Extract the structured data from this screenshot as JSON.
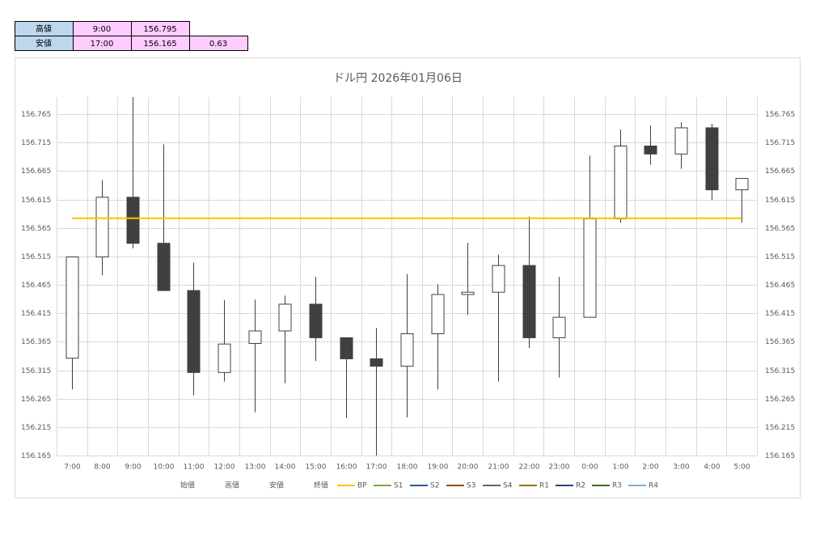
{
  "table": {
    "rows": [
      [
        "高値",
        "9:00",
        "156.795"
      ],
      [
        "安値",
        "17:00",
        "156.165",
        "0.63"
      ]
    ]
  },
  "chart_data": {
    "type": "candlestick",
    "title": "ドル円 2026年01月06日",
    "categories": [
      "7:00",
      "8:00",
      "9:00",
      "10:00",
      "11:00",
      "12:00",
      "13:00",
      "14:00",
      "15:00",
      "16:00",
      "17:00",
      "18:00",
      "19:00",
      "20:00",
      "21:00",
      "22:00",
      "23:00",
      "0:00",
      "1:00",
      "2:00",
      "3:00",
      "4:00",
      "5:00"
    ],
    "ohlc_names": [
      "始値",
      "高値",
      "安値",
      "終値"
    ],
    "open": [
      156.336,
      156.514,
      156.619,
      156.538,
      156.455,
      156.311,
      156.362,
      156.384,
      156.431,
      156.372,
      156.335,
      156.322,
      156.379,
      156.448,
      156.452,
      156.499,
      156.372,
      156.408,
      156.581,
      156.709,
      156.695,
      156.741,
      156.632
    ],
    "high": [
      156.515,
      156.649,
      156.795,
      156.712,
      156.504,
      156.438,
      156.439,
      156.446,
      156.479,
      156.372,
      156.389,
      156.484,
      156.466,
      156.539,
      156.518,
      156.585,
      156.479,
      156.692,
      156.738,
      156.745,
      156.751,
      156.748,
      156.652
    ],
    "low": [
      156.281,
      156.482,
      156.529,
      156.455,
      156.271,
      156.295,
      156.241,
      156.292,
      156.331,
      156.231,
      156.165,
      156.232,
      156.281,
      156.412,
      156.295,
      156.354,
      156.302,
      156.408,
      156.574,
      156.676,
      156.669,
      156.614,
      156.574
    ],
    "close": [
      156.514,
      156.619,
      156.538,
      156.455,
      156.311,
      156.361,
      156.384,
      156.431,
      156.372,
      156.335,
      156.322,
      156.379,
      156.448,
      156.452,
      156.499,
      156.372,
      156.408,
      156.581,
      156.709,
      156.695,
      156.741,
      156.632,
      156.652
    ],
    "up_color": "#ffffff",
    "down_color": "#404040",
    "lines": [
      {
        "name": "BP",
        "color": "#ffc000",
        "value": 156.582
      },
      {
        "name": "S1",
        "color": "#70ad47"
      },
      {
        "name": "S2",
        "color": "#255e91"
      },
      {
        "name": "S3",
        "color": "#9e480e"
      },
      {
        "name": "S4",
        "color": "#636363"
      },
      {
        "name": "R1",
        "color": "#997300"
      },
      {
        "name": "R2",
        "color": "#264478"
      },
      {
        "name": "R3",
        "color": "#43682b"
      },
      {
        "name": "R4",
        "color": "#7cafdd"
      }
    ],
    "ylim": [
      156.165,
      156.795
    ],
    "yticks": [
      156.165,
      156.215,
      156.265,
      156.315,
      156.365,
      156.415,
      156.465,
      156.515,
      156.565,
      156.615,
      156.665,
      156.715,
      156.765
    ],
    "y2lim": [
      156.165,
      156.795
    ],
    "y2ticks": [
      156.165,
      156.215,
      156.265,
      156.315,
      156.365,
      156.415,
      156.465,
      156.515,
      156.565,
      156.615,
      156.665,
      156.715,
      156.765
    ],
    "grid": true
  }
}
